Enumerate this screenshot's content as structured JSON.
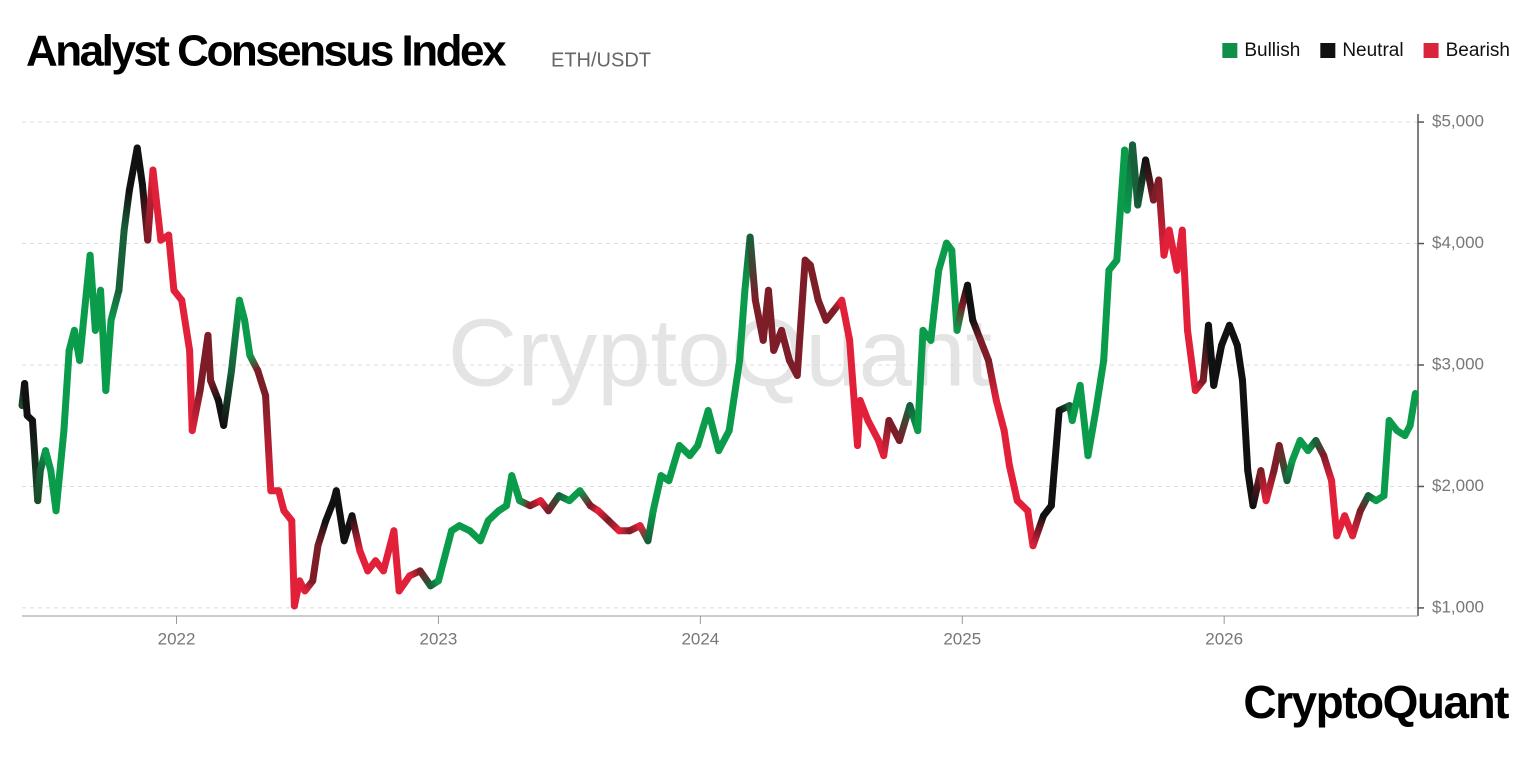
{
  "chart_data": {
    "type": "line",
    "title": "Analyst Consensus Index",
    "subtitle": "ETH/USDT",
    "watermark": "CryptoQuant",
    "brand": "CryptoQuant",
    "legend_position": "top-right",
    "legend": [
      {
        "name": "Bullish",
        "color": "#0f8f4a"
      },
      {
        "name": "Neutral",
        "color": "#111111"
      },
      {
        "name": "Bearish",
        "color": "#d9253b"
      }
    ],
    "grid": true,
    "xlim": [
      2021.41,
      2026.74
    ],
    "xticks": [
      2022,
      2023,
      2024,
      2025,
      2026
    ],
    "ylim": [
      950,
      5050
    ],
    "yticks": [
      {
        "value": 1000,
        "label": "$1,000"
      },
      {
        "value": 2000,
        "label": "$2,000"
      },
      {
        "value": 3000,
        "label": "$3,000"
      },
      {
        "value": 4000,
        "label": "$4,000"
      },
      {
        "value": 5000,
        "label": "$5,000"
      }
    ],
    "x": [
      2021.41,
      2021.42,
      2021.43,
      2021.45,
      2021.47,
      2021.48,
      2021.5,
      2021.52,
      2021.54,
      2021.57,
      2021.59,
      2021.61,
      2021.63,
      2021.67,
      2021.69,
      2021.71,
      2021.73,
      2021.75,
      2021.78,
      2021.8,
      2021.82,
      2021.85,
      2021.87,
      2021.89,
      2021.91,
      2021.94,
      2021.97,
      2021.99,
      2022.02,
      2022.05,
      2022.06,
      2022.09,
      2022.12,
      2022.13,
      2022.16,
      2022.18,
      2022.21,
      2022.24,
      2022.26,
      2022.28,
      2022.31,
      2022.34,
      2022.36,
      2022.39,
      2022.41,
      2022.44,
      2022.45,
      2022.47,
      2022.49,
      2022.52,
      2022.54,
      2022.57,
      2022.6,
      2022.61,
      2022.64,
      2022.67,
      2022.7,
      2022.73,
      2022.76,
      2022.79,
      2022.83,
      2022.85,
      2022.89,
      2022.93,
      2022.97,
      2023.0,
      2023.02,
      2023.05,
      2023.08,
      2023.12,
      2023.16,
      2023.19,
      2023.23,
      2023.26,
      2023.28,
      2023.31,
      2023.35,
      2023.39,
      2023.42,
      2023.46,
      2023.5,
      2023.54,
      2023.58,
      2023.61,
      2023.65,
      2023.69,
      2023.73,
      2023.77,
      2023.8,
      2023.82,
      2023.85,
      2023.88,
      2023.92,
      2023.96,
      2023.99,
      2024.03,
      2024.07,
      2024.11,
      2024.15,
      2024.17,
      2024.19,
      2024.21,
      2024.24,
      2024.26,
      2024.28,
      2024.31,
      2024.34,
      2024.37,
      2024.4,
      2024.42,
      2024.45,
      2024.48,
      2024.51,
      2024.54,
      2024.57,
      2024.6,
      2024.61,
      2024.64,
      2024.68,
      2024.7,
      2024.72,
      2024.76,
      2024.8,
      2024.83,
      2024.85,
      2024.88,
      2024.91,
      2024.94,
      2024.96,
      2024.98,
      2025.0,
      2025.02,
      2025.04,
      2025.07,
      2025.1,
      2025.13,
      2025.16,
      2025.18,
      2025.21,
      2025.25,
      2025.27,
      2025.31,
      2025.34,
      2025.37,
      2025.41,
      2025.42,
      2025.45,
      2025.48,
      2025.51,
      2025.54,
      2025.56,
      2025.59,
      2025.62,
      2025.63,
      2025.65,
      2025.67,
      2025.7,
      2025.73,
      2025.75,
      2025.77,
      2025.79,
      2025.82,
      2025.84,
      2025.86,
      2025.89,
      2025.92,
      2025.94,
      2025.96,
      2025.99,
      2026.02,
      2026.05,
      2026.07,
      2026.09,
      2026.11,
      2026.14,
      2026.16,
      2026.19,
      2026.21,
      2026.24,
      2026.26,
      2026.29,
      2026.32,
      2026.35,
      2026.38,
      2026.41,
      2026.43,
      2026.46,
      2026.49,
      2026.52,
      2026.55,
      2026.58,
      2026.61,
      2026.63,
      2026.66,
      2026.69,
      2026.71,
      2026.73
    ],
    "series": [
      {
        "values": [
          2666,
          2848,
          2584,
          2543,
          1883,
          2130,
          2295,
          2130,
          1800,
          2460,
          3120,
          3285,
          3038,
          3904,
          3285,
          3615,
          2790,
          3368,
          3615,
          4110,
          4440,
          4787,
          4482,
          4028,
          4605,
          4028,
          4069,
          3615,
          3533,
          3120,
          2460,
          2790,
          3244,
          2873,
          2708,
          2502,
          2955,
          3533,
          3368,
          3079,
          2955,
          2749,
          1965,
          1965,
          1800,
          1718,
          1016,
          1223,
          1140,
          1223,
          1512,
          1718,
          1883,
          1965,
          1553,
          1759,
          1470,
          1305,
          1388,
          1305,
          1635,
          1140,
          1264,
          1305,
          1182,
          1223,
          1388,
          1635,
          1677,
          1635,
          1553,
          1718,
          1800,
          1842,
          2089,
          1883,
          1842,
          1883,
          1800,
          1924,
          1883,
          1965,
          1842,
          1800,
          1718,
          1635,
          1635,
          1677,
          1553,
          1800,
          2089,
          2048,
          2337,
          2254,
          2337,
          2625,
          2295,
          2460,
          3038,
          3615,
          4053,
          3533,
          3203,
          3615,
          3120,
          3285,
          3038,
          2914,
          3863,
          3822,
          3533,
          3368,
          3450,
          3533,
          3203,
          2337,
          2708,
          2543,
          2378,
          2254,
          2543,
          2378,
          2666,
          2460,
          3285,
          3203,
          3780,
          4003,
          3945,
          3285,
          3492,
          3657,
          3368,
          3203,
          3038,
          2708,
          2460,
          2172,
          1883,
          1800,
          1512,
          1759,
          1842,
          2625,
          2666,
          2543,
          2832,
          2254,
          2625,
          3038,
          3780,
          3863,
          4770,
          4275,
          4812,
          4317,
          4688,
          4358,
          4523,
          3904,
          4110,
          3780,
          4110,
          3285,
          2790,
          2873,
          3327,
          2832,
          3162,
          3327,
          3162,
          2873,
          2130,
          1842,
          2130,
          1883,
          2130,
          2337,
          2048,
          2213,
          2378,
          2295,
          2378,
          2254,
          2048,
          1594,
          1759,
          1594,
          1800,
          1924,
          1883,
          1924,
          2543,
          2460,
          2419,
          2502,
          2766
        ],
        "point_colors": [
          "#1e4a2a",
          "#111111",
          "#111111",
          "#111111",
          "#1e4a2a",
          "#17603a",
          "#0a9b4b",
          "#0a9b4b",
          "#0a9b4b",
          "#0a9b4b",
          "#0a9b4b",
          "#0a9b4b",
          "#0a9b4b",
          "#0a9b4b",
          "#0a9b4b",
          "#0a9b4b",
          "#0a9b4b",
          "#0a9b4b",
          "#17603a",
          "#17603a",
          "#111111",
          "#111111",
          "#111111",
          "#7c1d27",
          "#e2203a",
          "#e2203a",
          "#e2203a",
          "#e2203a",
          "#e2203a",
          "#e2203a",
          "#e2203a",
          "#7c1d27",
          "#7c1d27",
          "#7c1d27",
          "#111111",
          "#111111",
          "#17603a",
          "#0a9b4b",
          "#0a9b4b",
          "#0a9b4b",
          "#7c1d27",
          "#7c1d27",
          "#e2203a",
          "#e2203a",
          "#e2203a",
          "#e2203a",
          "#e2203a",
          "#e2203a",
          "#e2203a",
          "#7c1d27",
          "#7c1d27",
          "#111111",
          "#111111",
          "#111111",
          "#111111",
          "#111111",
          "#e2203a",
          "#e2203a",
          "#e2203a",
          "#e2203a",
          "#e2203a",
          "#e2203a",
          "#e2203a",
          "#7c1d27",
          "#17603a",
          "#0a9b4b",
          "#0a9b4b",
          "#0a9b4b",
          "#0a9b4b",
          "#0a9b4b",
          "#0a9b4b",
          "#0a9b4b",
          "#0a9b4b",
          "#0a9b4b",
          "#0a9b4b",
          "#0a9b4b",
          "#7c1d27",
          "#e2203a",
          "#7c1d27",
          "#17603a",
          "#0a9b4b",
          "#0a9b4b",
          "#7c1d27",
          "#e2203a",
          "#7c1d27",
          "#e2203a",
          "#7c1d27",
          "#e2203a",
          "#17603a",
          "#0a9b4b",
          "#0a9b4b",
          "#0a9b4b",
          "#0a9b4b",
          "#0a9b4b",
          "#0a9b4b",
          "#0a9b4b",
          "#0a9b4b",
          "#0a9b4b",
          "#0a9b4b",
          "#0a9b4b",
          "#17603a",
          "#7c1d27",
          "#7c1d27",
          "#7c1d27",
          "#7c1d27",
          "#7c1d27",
          "#7c1d27",
          "#7c1d27",
          "#7c1d27",
          "#7c1d27",
          "#7c1d27",
          "#7c1d27",
          "#7c1d27",
          "#e2203a",
          "#e2203a",
          "#e2203a",
          "#e2203a",
          "#e2203a",
          "#e2203a",
          "#e2203a",
          "#7c1d27",
          "#7c1d27",
          "#17603a",
          "#0a9b4b",
          "#0a9b4b",
          "#0a9b4b",
          "#0a9b4b",
          "#0a9b4b",
          "#0a9b4b",
          "#0a9b4b",
          "#7c1d27",
          "#111111",
          "#111111",
          "#7c1d27",
          "#7c1d27",
          "#e2203a",
          "#e2203a",
          "#e2203a",
          "#e2203a",
          "#e2203a",
          "#e2203a",
          "#111111",
          "#111111",
          "#111111",
          "#17603a",
          "#0a9b4b",
          "#0a9b4b",
          "#0a9b4b",
          "#0a9b4b",
          "#0a9b4b",
          "#0a9b4b",
          "#0a9b4b",
          "#0a9b4b",
          "#0a9b4b",
          "#17603a",
          "#17603a",
          "#111111",
          "#7c1d27",
          "#7c1d27",
          "#e2203a",
          "#e2203a",
          "#e2203a",
          "#e2203a",
          "#e2203a",
          "#e2203a",
          "#7c1d27",
          "#111111",
          "#111111",
          "#111111",
          "#111111",
          "#111111",
          "#111111",
          "#111111",
          "#111111",
          "#7c1d27",
          "#e2203a",
          "#7c1d27",
          "#7c1d27",
          "#17603a",
          "#0a9b4b",
          "#0a9b4b",
          "#0a9b4b",
          "#17603a",
          "#7c1d27",
          "#e2203a",
          "#e2203a",
          "#e2203a",
          "#e2203a",
          "#7c1d27",
          "#17603a",
          "#0a9b4b",
          "#0a9b4b",
          "#0a9b4b",
          "#0a9b4b",
          "#0a9b4b",
          "#0a9b4b",
          "#0a9b4b"
        ]
      }
    ]
  }
}
